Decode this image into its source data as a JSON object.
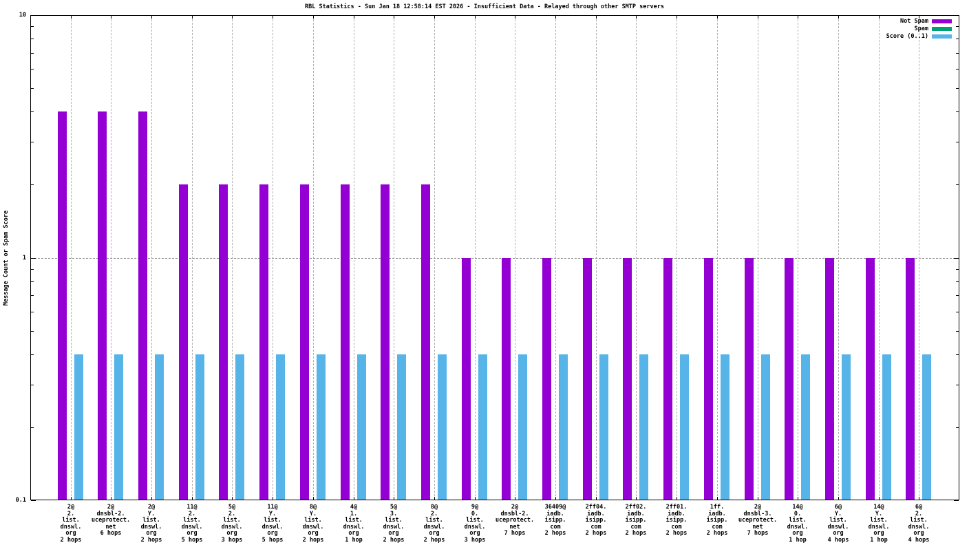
{
  "title": "RBL Statistics - Sun Jan 18 12:58:14 EST 2026 - Insufficient Data - Relayed through other SMTP servers",
  "chart_data": {
    "type": "bar",
    "title": "RBL Statistics - Sun Jan 18 12:58:14 EST 2026 - Insufficient Data - Relayed through other SMTP servers",
    "ylabel": "Message Count or Spam Score",
    "xlabel": "",
    "yscale": "log",
    "ylim": [
      0.1,
      10
    ],
    "grid": true,
    "legend_position": "top-right",
    "y_major": [
      {
        "value": 10,
        "label": "10"
      },
      {
        "value": 1,
        "label": "1"
      },
      {
        "value": 0.1,
        "label": "0.1"
      }
    ],
    "y_minor": [
      9,
      8,
      7,
      6,
      5,
      4,
      3,
      2,
      0.9,
      0.8,
      0.7,
      0.6,
      0.5,
      0.4,
      0.3,
      0.2
    ],
    "categories": [
      [
        "2@",
        "2.",
        "list.",
        "dnswl.",
        "org",
        "2 hops"
      ],
      [
        "2@",
        "dnsbl-2.",
        "uceprotect.",
        "net",
        "6 hops"
      ],
      [
        "2@",
        "Y.",
        "list.",
        "dnswl.",
        "org",
        "2 hops"
      ],
      [
        "11@",
        "2.",
        "list.",
        "dnswl.",
        "org",
        "5 hops"
      ],
      [
        "5@",
        "2.",
        "list.",
        "dnswl.",
        "org",
        "3 hops"
      ],
      [
        "11@",
        "Y.",
        "list.",
        "dnswl.",
        "org",
        "5 hops"
      ],
      [
        "8@",
        "Y.",
        "list.",
        "dnswl.",
        "org",
        "2 hops"
      ],
      [
        "4@",
        "1.",
        "list.",
        "dnswl.",
        "org",
        "1 hop"
      ],
      [
        "5@",
        "3.",
        "list.",
        "dnswl.",
        "org",
        "2 hops"
      ],
      [
        "8@",
        "2.",
        "list.",
        "dnswl.",
        "org",
        "2 hops"
      ],
      [
        "9@",
        "0.",
        "list.",
        "dnswl.",
        "org",
        "3 hops"
      ],
      [
        "2@",
        "dnsbl-2.",
        "uceprotect.",
        "net",
        "7 hops"
      ],
      [
        "36409@",
        "iadb.",
        "isipp.",
        "com",
        "2 hops"
      ],
      [
        "2ff04.",
        "iadb.",
        "isipp.",
        "com",
        "2 hops"
      ],
      [
        "2ff02.",
        "iadb.",
        "isipp.",
        "com",
        "2 hops"
      ],
      [
        "2ff01.",
        "iadb.",
        "isipp.",
        "com",
        "2 hops"
      ],
      [
        "1ff.",
        "iadb.",
        "isipp.",
        "com",
        "2 hops"
      ],
      [
        "2@",
        "dnsbl-3.",
        "uceprotect.",
        "net",
        "7 hops"
      ],
      [
        "14@",
        "0.",
        "list.",
        "dnswl.",
        "org",
        "1 hop"
      ],
      [
        "6@",
        "Y.",
        "list.",
        "dnswl.",
        "org",
        "4 hops"
      ],
      [
        "14@",
        "Y.",
        "list.",
        "dnswl.",
        "org",
        "1 hop"
      ],
      [
        "6@",
        "2.",
        "list.",
        "dnswl.",
        "org",
        "4 hops"
      ]
    ],
    "series": [
      {
        "name": "Not Spam",
        "color": "#9400d3",
        "values": [
          4,
          4,
          4,
          2,
          2,
          2,
          2,
          2,
          2,
          2,
          1,
          1,
          1,
          1,
          1,
          1,
          1,
          1,
          1,
          1,
          1,
          1
        ]
      },
      {
        "name": "Spam",
        "color": "#009e73",
        "values": [
          0,
          0,
          0,
          0,
          0,
          0,
          0,
          0,
          0,
          0,
          0,
          0,
          0,
          0,
          0,
          0,
          0,
          0,
          0,
          0,
          0,
          0
        ]
      },
      {
        "name": "Score (0..1)",
        "color": "#56b4e9",
        "values": [
          0.4,
          0.4,
          0.4,
          0.4,
          0.4,
          0.4,
          0.4,
          0.4,
          0.4,
          0.4,
          0.4,
          0.4,
          0.4,
          0.4,
          0.4,
          0.4,
          0.4,
          0.4,
          0.4,
          0.4,
          0.4,
          0.4
        ]
      }
    ]
  }
}
